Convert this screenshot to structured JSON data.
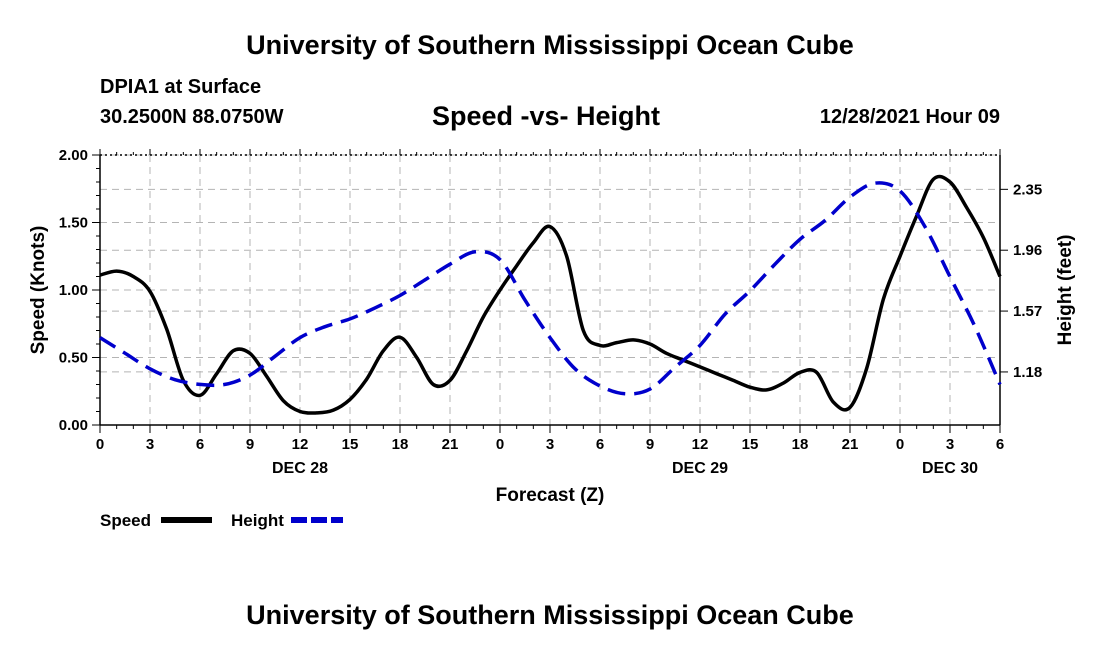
{
  "header": {
    "title": "University of Southern Mississippi Ocean Cube",
    "station": "DPIA1 at Surface",
    "coords": "30.2500N  88.0750W",
    "chart_title": "Speed -vs- Height",
    "date": "12/28/2021 Hour 09"
  },
  "footer": {
    "title": "University of Southern Mississippi Ocean Cube"
  },
  "chart_data": {
    "type": "line",
    "title": "Speed -vs- Height",
    "xlabel": "Forecast (Z)",
    "ylabel_left": "Speed (Knots)",
    "ylabel_right": "Height (feet)",
    "xlim": [
      0,
      54
    ],
    "ylim_left": [
      0,
      2.0
    ],
    "ylim_right": [
      0.84,
      2.57
    ],
    "x_ticks": [
      0,
      3,
      6,
      9,
      12,
      15,
      18,
      21,
      24,
      27,
      30,
      33,
      36,
      39,
      42,
      45,
      48,
      51,
      54
    ],
    "x_tick_labels": [
      "0",
      "3",
      "6",
      "9",
      "12",
      "15",
      "18",
      "21",
      "0",
      "3",
      "6",
      "9",
      "12",
      "15",
      "18",
      "21",
      "0",
      "3",
      "6"
    ],
    "date_labels": [
      {
        "text": "DEC 28",
        "x": 12
      },
      {
        "text": "DEC 29",
        "x": 36
      },
      {
        "text": "DEC 30",
        "x": 51
      }
    ],
    "left_ticks": [
      0.0,
      0.5,
      1.0,
      1.5,
      2.0
    ],
    "left_tick_labels": [
      "0.00",
      "0.50",
      "1.00",
      "1.50",
      "2.00"
    ],
    "right_ticks": [
      1.18,
      1.57,
      1.96,
      2.35
    ],
    "right_tick_labels": [
      "1.18",
      "1.57",
      "1.96",
      "2.35"
    ],
    "grid": true,
    "legend_position": "bottom-left",
    "series": [
      {
        "name": "Speed",
        "axis": "left",
        "color": "#000000",
        "style": "solid",
        "x": [
          0,
          1,
          2,
          3,
          4,
          5,
          6,
          7,
          8,
          9,
          10,
          11,
          12,
          13,
          14,
          15,
          16,
          17,
          18,
          19,
          20,
          21,
          22,
          23,
          24,
          25,
          26,
          27,
          28,
          29,
          30,
          31,
          32,
          33,
          34,
          35,
          36,
          37,
          38,
          39,
          40,
          41,
          42,
          43,
          44,
          45,
          46,
          47,
          48,
          49,
          50,
          51,
          52,
          53,
          54
        ],
        "values": [
          1.11,
          1.14,
          1.1,
          0.99,
          0.71,
          0.33,
          0.22,
          0.38,
          0.55,
          0.53,
          0.36,
          0.18,
          0.1,
          0.09,
          0.11,
          0.19,
          0.34,
          0.55,
          0.65,
          0.5,
          0.3,
          0.33,
          0.55,
          0.8,
          1.0,
          1.18,
          1.35,
          1.47,
          1.25,
          0.7,
          0.59,
          0.61,
          0.63,
          0.6,
          0.53,
          0.48,
          0.43,
          0.38,
          0.33,
          0.28,
          0.26,
          0.31,
          0.39,
          0.39,
          0.17,
          0.13,
          0.42,
          0.93,
          1.25,
          1.55,
          1.82,
          1.8,
          1.61,
          1.39,
          1.1
        ]
      },
      {
        "name": "Height",
        "axis": "right",
        "color": "#0000cc",
        "style": "dashed",
        "x": [
          0,
          1.5,
          3,
          4.5,
          6,
          7.5,
          9,
          10.5,
          12,
          13.5,
          15,
          16.5,
          18,
          19.5,
          21,
          22.5,
          24,
          25.5,
          27,
          28.5,
          30,
          31.5,
          33,
          34.5,
          36,
          37.5,
          39,
          40.5,
          42,
          43.5,
          45,
          46.5,
          48,
          49.5,
          51,
          52.5,
          54
        ],
        "values": [
          1.4,
          1.3,
          1.2,
          1.13,
          1.1,
          1.1,
          1.16,
          1.28,
          1.4,
          1.47,
          1.52,
          1.59,
          1.67,
          1.77,
          1.87,
          1.95,
          1.9,
          1.64,
          1.4,
          1.2,
          1.09,
          1.04,
          1.07,
          1.21,
          1.35,
          1.55,
          1.7,
          1.87,
          2.03,
          2.15,
          2.3,
          2.39,
          2.34,
          2.11,
          1.79,
          1.47,
          1.1
        ]
      }
    ]
  }
}
